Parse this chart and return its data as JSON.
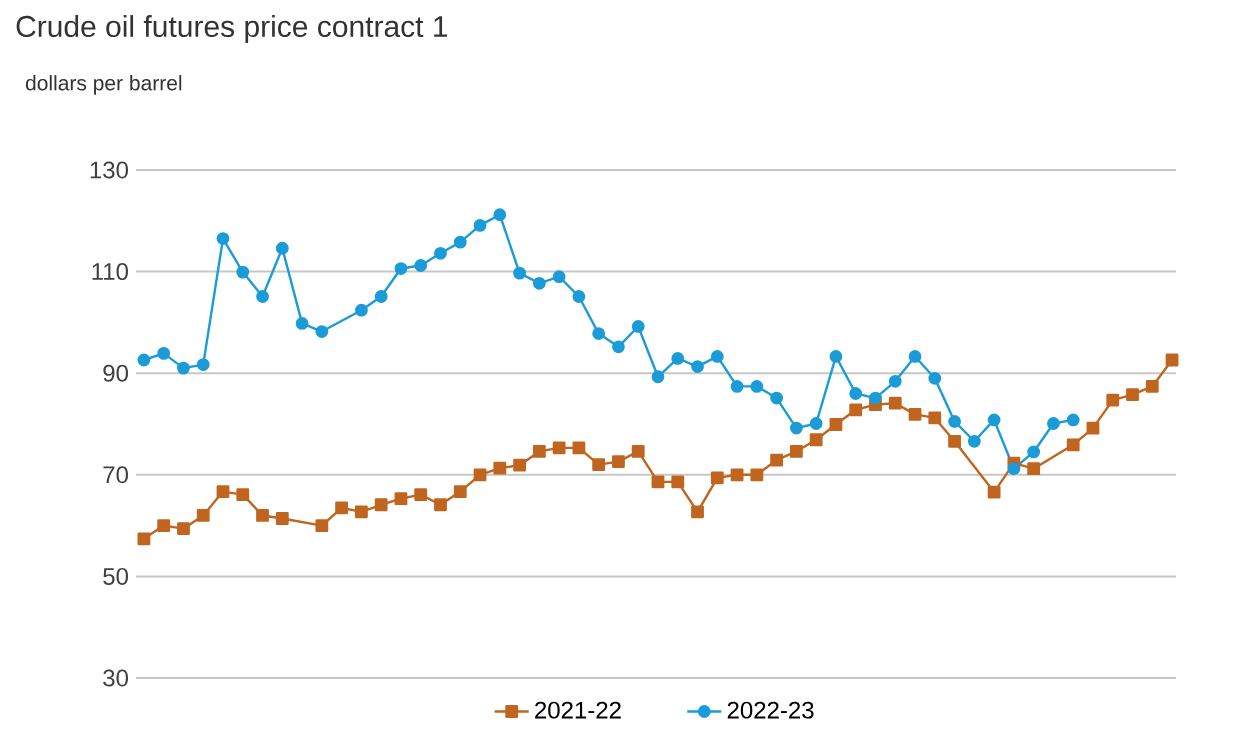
{
  "chart_data": {
    "type": "line",
    "title": "Crude oil futures price contract 1",
    "subtitle": "dollars per barrel",
    "categories": [
      null,
      null,
      null,
      null,
      null,
      null,
      null,
      null,
      null,
      null,
      null,
      null,
      null,
      null,
      null,
      null,
      null,
      null,
      null,
      null,
      null,
      null,
      null,
      null,
      null,
      null,
      null,
      null,
      null,
      null,
      null,
      null,
      null,
      null,
      null,
      null,
      null,
      null,
      null,
      null,
      null,
      null,
      null,
      null,
      null,
      null,
      null,
      null,
      null,
      null,
      null,
      null,
      null
    ],
    "series": [
      {
        "name": "2021-22",
        "color": "#c0651f",
        "marker": "square",
        "values": [
          57.4,
          60,
          59.4,
          62,
          66.7,
          66.1,
          62,
          61.4,
          null,
          60,
          63.5,
          62.7,
          64.1,
          65.3,
          66.1,
          64.1,
          66.7,
          70,
          71.3,
          71.9,
          74.6,
          75.3,
          75.3,
          72,
          72.6,
          74.6,
          68.6,
          68.6,
          62.7,
          69.4,
          70,
          70,
          72.9,
          74.6,
          76.9,
          79.9,
          82.8,
          83.8,
          84.1,
          81.9,
          81.2,
          76.6,
          null,
          66.6,
          72.3,
          71.2,
          null,
          75.9,
          79.2,
          84.7,
          85.8,
          87.4,
          92.6
        ]
      },
      {
        "name": "2022-23",
        "color": "#1b9bd7",
        "marker": "circle",
        "values": [
          92.6,
          93.9,
          91,
          91.7,
          116.5,
          109.9,
          105.1,
          114.6,
          99.8,
          98.2,
          null,
          102.4,
          105.1,
          110.6,
          111.2,
          113.6,
          115.8,
          119.1,
          121.2,
          109.7,
          107.7,
          109,
          105.1,
          97.8,
          95.2,
          99.2,
          89.3,
          92.9,
          91.3,
          93.3,
          87.4,
          87.4,
          85.1,
          79.2,
          80.1,
          93.3,
          86,
          85.1,
          88.4,
          93.3,
          89,
          80.5,
          76.6,
          80.8,
          71.2,
          74.5,
          80.1,
          80.8,
          null,
          null,
          null,
          null,
          null
        ]
      }
    ],
    "ylim": [
      30,
      130
    ],
    "yticks": [
      30,
      50,
      70,
      90,
      110,
      130
    ],
    "grid": "y",
    "legend": "bottom",
    "tick_labels": "y"
  }
}
